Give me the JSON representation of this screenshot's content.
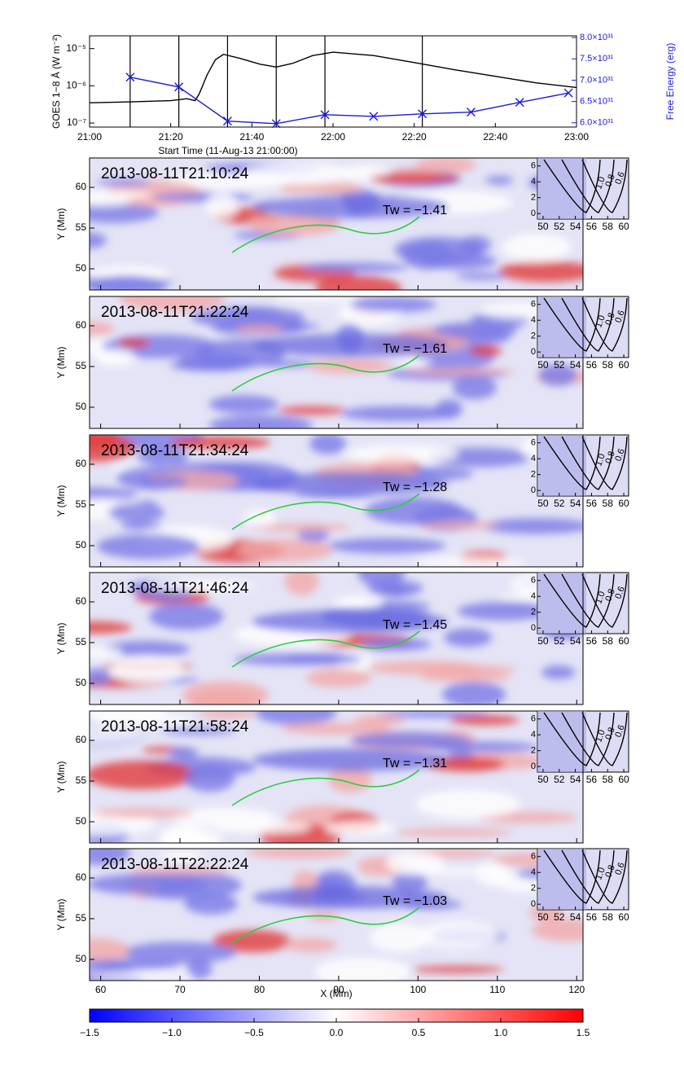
{
  "chart_data": {
    "type": "line",
    "xlabel": "Start Time (11-Aug-13 21:00:00)",
    "ylabel": "GOES 1−8 Å (W m⁻²)",
    "y2label": "Free Energy (erg)",
    "xlim": [
      "21:00",
      "23:00"
    ],
    "xticks": [
      "21:00",
      "21:20",
      "21:40",
      "22:00",
      "22:20",
      "22:40",
      "23:00"
    ],
    "log": true,
    "ylim": [
      7.8e-08,
      2.2e-05
    ],
    "yticks": [
      {
        "value": 1e-07,
        "label": "10⁻⁷"
      },
      {
        "value": 1e-06,
        "label": "10⁻⁶"
      },
      {
        "value": 1e-05,
        "label": "10⁻⁵"
      }
    ],
    "y2lim": [
      5.9e+31,
      8.04e+31
    ],
    "y2ticks": [
      {
        "value": 6e+31,
        "label": "6.0×10³¹"
      },
      {
        "value": 6.5e+31,
        "label": "6.5×10³¹"
      },
      {
        "value": 7e+31,
        "label": "7.0×10³¹"
      },
      {
        "value": 7.5e+31,
        "label": "7.5×10³¹"
      },
      {
        "value": 8e+31,
        "label": "8.0×10³¹"
      }
    ],
    "vlines": [
      "21:10",
      "21:22",
      "21:34",
      "21:46",
      "21:58",
      "22:22"
    ],
    "series": [
      {
        "color": "#000000",
        "x": [
          "21:00",
          "21:10",
          "21:20",
          "21:24",
          "21:26",
          "21:27",
          "21:29",
          "21:31",
          "21:33",
          "21:37",
          "21:42",
          "21:46",
          "21:50",
          "21:55",
          "22:00",
          "22:10",
          "22:20",
          "22:30",
          "22:40",
          "22:50",
          "23:00"
        ],
        "values": [
          3.5e-07,
          3.7e-07,
          4e-07,
          4.5e-07,
          4e-07,
          6e-07,
          2e-06,
          5e-06,
          7e-06,
          5.5e-06,
          3.8e-06,
          3.2e-06,
          4e-06,
          6.5e-06,
          8e-06,
          6.5e-06,
          4.2e-06,
          2.7e-06,
          1.8e-06,
          1.2e-06,
          9e-07
        ]
      },
      {
        "color": "#1a1adb",
        "axis": "y2",
        "marker": "x",
        "x": [
          "21:10",
          "21:22",
          "21:34",
          "21:46",
          "21:58",
          "22:10",
          "22:22",
          "22:34",
          "22:46",
          "22:58"
        ],
        "values": [
          7.07e+31,
          6.84e+31,
          6.04e+31,
          5.98e+31,
          6.19e+31,
          6.15e+31,
          6.21e+31,
          6.25e+31,
          6.48e+31,
          6.7e+31
        ]
      }
    ]
  },
  "panels": [
    {
      "time": "2013-08-11T21:10:24",
      "tw": "Tw = −1.41"
    },
    {
      "time": "2013-08-11T21:22:24",
      "tw": "Tw = −1.61"
    },
    {
      "time": "2013-08-11T21:34:24",
      "tw": "Tw = −1.28"
    },
    {
      "time": "2013-08-11T21:46:24",
      "tw": "Tw = −1.45"
    },
    {
      "time": "2013-08-11T21:58:24",
      "tw": "Tw = −1.31"
    },
    {
      "time": "2013-08-11T22:22:24",
      "tw": "Tw = −1.03"
    }
  ],
  "panel_axes": {
    "ylabel": "Y (Mm)",
    "ylim": [
      47.4,
      63.6
    ],
    "yticks": [
      50,
      55,
      60
    ],
    "xlabel": "X (Mm)",
    "xlim": [
      58.6,
      120.8
    ],
    "xticks": [
      60,
      70,
      80,
      90,
      100,
      110,
      120
    ],
    "inset": {
      "xlim": [
        49.3,
        60.6
      ],
      "xticks": [
        50,
        52,
        54,
        56,
        58,
        60
      ],
      "ylim": [
        -0.7,
        7.0
      ],
      "yticks": [
        0,
        2,
        4,
        6
      ],
      "contour_labels": [
        "1.0",
        "0.8",
        "0.6"
      ]
    }
  },
  "colorbar": {
    "lim": [
      -1.5,
      1.5
    ],
    "colors": [
      "#0000ff",
      "#ffffff",
      "#ff0000"
    ],
    "ticks": [
      {
        "value": -1.5,
        "label": "−1.5"
      },
      {
        "value": -1.0,
        "label": "−1.0"
      },
      {
        "value": -0.5,
        "label": "−0.5"
      },
      {
        "value": 0,
        "label": "0.0"
      },
      0.5,
      {
        "value": 1.0,
        "label": "1.0"
      },
      1.5
    ]
  }
}
